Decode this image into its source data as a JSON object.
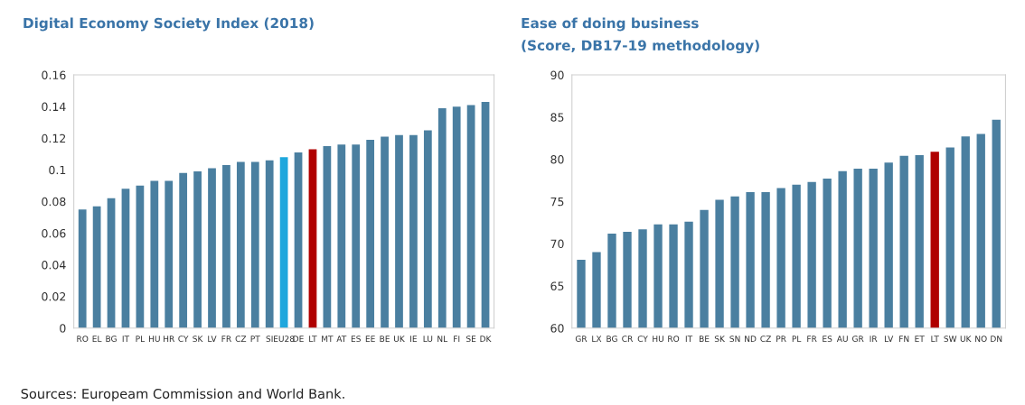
{
  "chart_data": [
    {
      "type": "bar",
      "title": "Digital Economy Society Index (2018)",
      "categories": [
        "RO",
        "EL",
        "BG",
        "IT",
        "PL",
        "HU",
        "HR",
        "CY",
        "SK",
        "LV",
        "FR",
        "CZ",
        "PT",
        "SI",
        "EU28",
        "DE",
        "LT",
        "MT",
        "AT",
        "ES",
        "EE",
        "BE",
        "UK",
        "IE",
        "LU",
        "NL",
        "FI",
        "SE",
        "DK"
      ],
      "values": [
        0.075,
        0.077,
        0.082,
        0.088,
        0.09,
        0.093,
        0.093,
        0.098,
        0.099,
        0.101,
        0.103,
        0.105,
        0.105,
        0.106,
        0.108,
        0.111,
        0.113,
        0.115,
        0.116,
        0.116,
        0.119,
        0.121,
        0.122,
        0.122,
        0.125,
        0.139,
        0.14,
        0.141,
        0.143
      ],
      "colors": [
        "#4a7fa0",
        "#4a7fa0",
        "#4a7fa0",
        "#4a7fa0",
        "#4a7fa0",
        "#4a7fa0",
        "#4a7fa0",
        "#4a7fa0",
        "#4a7fa0",
        "#4a7fa0",
        "#4a7fa0",
        "#4a7fa0",
        "#4a7fa0",
        "#4a7fa0",
        "#1ea7dd",
        "#4a7fa0",
        "#b00000",
        "#4a7fa0",
        "#4a7fa0",
        "#4a7fa0",
        "#4a7fa0",
        "#4a7fa0",
        "#4a7fa0",
        "#4a7fa0",
        "#4a7fa0",
        "#4a7fa0",
        "#4a7fa0",
        "#4a7fa0",
        "#4a7fa0"
      ],
      "ylim": [
        0,
        0.16
      ],
      "yticks": [
        0,
        0.02,
        0.04,
        0.06,
        0.08,
        0.1,
        0.12,
        0.14,
        0.16
      ],
      "grid": false,
      "annotations": [
        "Sources: Europeam Commission and World Bank."
      ]
    },
    {
      "type": "bar",
      "title": "Ease of doing business",
      "subtitle": "(Score, DB17-19 methodology)",
      "categories": [
        "GR",
        "LX",
        "BG",
        "CR",
        "CY",
        "HU",
        "RO",
        "IT",
        "BE",
        "SK",
        "SN",
        "ND",
        "CZ",
        "PR",
        "PL",
        "FR",
        "ES",
        "AU",
        "GR",
        "IR",
        "LV",
        "FN",
        "ET",
        "LT",
        "SW",
        "UK",
        "NO",
        "DN"
      ],
      "values": [
        68.1,
        69.0,
        71.2,
        71.4,
        71.7,
        72.3,
        72.3,
        72.6,
        74.0,
        75.2,
        75.6,
        76.1,
        76.1,
        76.6,
        77.0,
        77.3,
        77.7,
        78.6,
        78.9,
        78.9,
        79.6,
        80.4,
        80.5,
        80.9,
        81.4,
        82.7,
        83.0,
        84.7
      ],
      "colors": [
        "#4a7fa0",
        "#4a7fa0",
        "#4a7fa0",
        "#4a7fa0",
        "#4a7fa0",
        "#4a7fa0",
        "#4a7fa0",
        "#4a7fa0",
        "#4a7fa0",
        "#4a7fa0",
        "#4a7fa0",
        "#4a7fa0",
        "#4a7fa0",
        "#4a7fa0",
        "#4a7fa0",
        "#4a7fa0",
        "#4a7fa0",
        "#4a7fa0",
        "#4a7fa0",
        "#4a7fa0",
        "#4a7fa0",
        "#4a7fa0",
        "#4a7fa0",
        "#b00000",
        "#4a7fa0",
        "#4a7fa0",
        "#4a7fa0",
        "#4a7fa0"
      ],
      "ylim": [
        60,
        90
      ],
      "yticks": [
        60,
        65,
        70,
        75,
        80,
        85,
        90
      ],
      "grid": false
    }
  ]
}
